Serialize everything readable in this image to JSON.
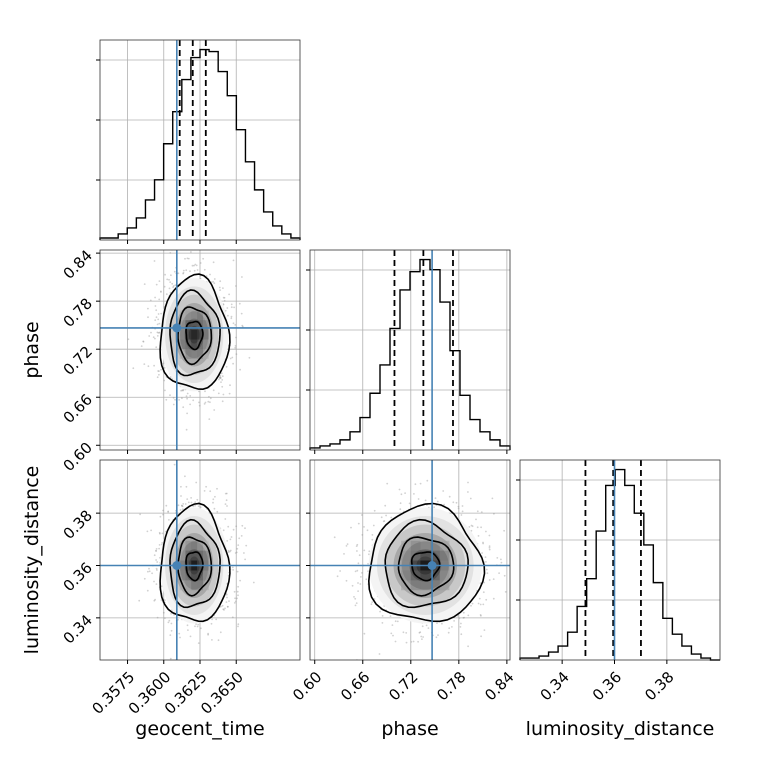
{
  "chart_data": {
    "type": "corner",
    "parameters": [
      "geocent_time",
      "phase",
      "luminosity_distance"
    ],
    "axis_labels": {
      "geocent_time": "geocent_time",
      "phase": "phase",
      "luminosity_distance": "luminosity_distance"
    },
    "ranges": {
      "geocent_time": [
        0.3556,
        0.3694
      ],
      "phase": [
        0.5941,
        0.8439
      ],
      "luminosity_distance": [
        0.3239,
        0.4003
      ]
    },
    "ticks": {
      "geocent_time": {
        "values": [
          0.3575,
          0.36,
          0.3625,
          0.365
        ],
        "labels": [
          "0.3575",
          "0.3600",
          "0.3625",
          "0.3650"
        ]
      },
      "phase": {
        "values": [
          0.6,
          0.66,
          0.72,
          0.78,
          0.84
        ],
        "labels": [
          "0.60",
          "0.66",
          "0.72",
          "0.78",
          "0.84"
        ]
      },
      "luminosity_distance": {
        "values": [
          0.34,
          0.36,
          0.38
        ],
        "labels": [
          "0.34",
          "0.36",
          "0.38"
        ]
      }
    },
    "truths": {
      "geocent_time": 0.3609,
      "phase": 0.7466,
      "luminosity_distance": 0.36
    },
    "quantiles": {
      "geocent_time": [
        0.3611,
        0.362,
        0.3629
      ],
      "phase": [
        0.6996,
        0.7357,
        0.7727
      ],
      "luminosity_distance": [
        0.3489,
        0.3595,
        0.3701
      ]
    },
    "histograms": {
      "geocent_time": [
        1,
        1,
        3,
        6,
        11,
        20,
        30,
        48,
        64,
        80,
        91,
        95,
        94,
        84,
        72,
        55,
        39,
        25,
        14,
        7,
        3,
        1
      ],
      "phase": [
        1,
        2,
        3,
        5,
        9,
        16,
        28,
        42,
        60,
        79,
        88,
        94,
        89,
        73,
        49,
        27,
        15,
        9,
        5,
        2
      ],
      "luminosity_distance": [
        1,
        1,
        2,
        4,
        7,
        14,
        27,
        41,
        65,
        88,
        96,
        88,
        74,
        58,
        39,
        21,
        13,
        7,
        3,
        1,
        0
      ]
    },
    "density_means": {
      "geocent_time": 0.3621,
      "phase": 0.7381,
      "luminosity_distance": 0.36
    },
    "density_sigmas": {
      "geocent_time": 0.00115,
      "phase": 0.0345,
      "luminosity_distance": 0.0108
    },
    "grid": true,
    "colors": {
      "truth": "#4682b4",
      "contour": "#000000",
      "histogram": "#000000",
      "grid": "#b0b0b0",
      "points": "#9a9a9a"
    }
  }
}
